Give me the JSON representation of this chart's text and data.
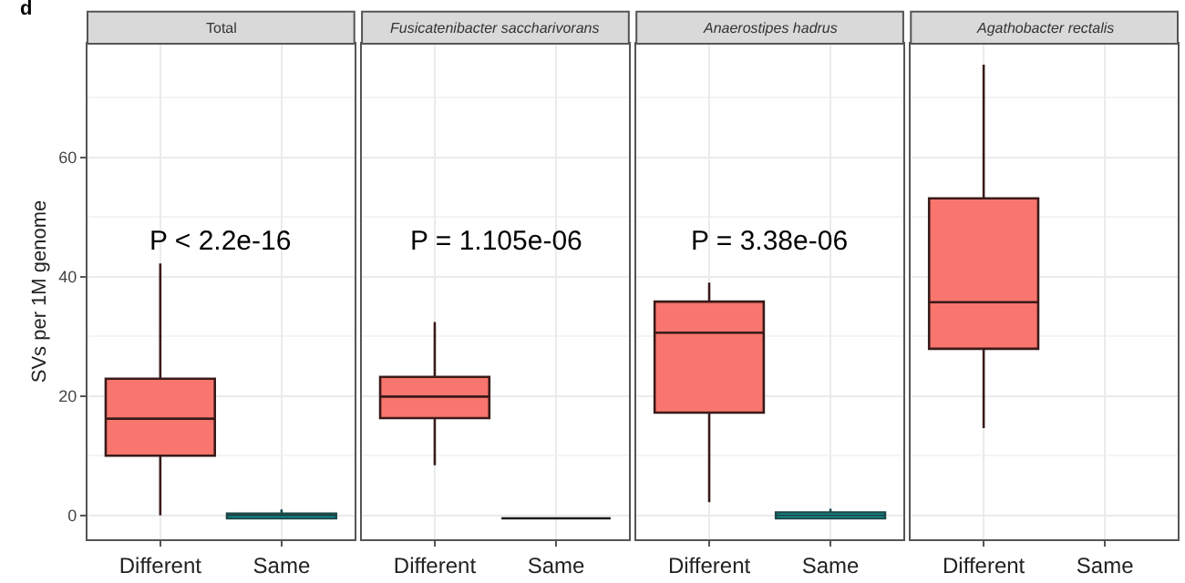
{
  "chart_data": [
    {
      "type": "box",
      "title": "Total",
      "ylabel": "SVs per 1M genome",
      "categories": [
        "Different",
        "Same"
      ],
      "colors": [
        "#f8766d",
        "#00bfc4"
      ],
      "boxes": [
        {
          "low": 0,
          "q1": 10,
          "median": 16.2,
          "q3": 22.9,
          "high": 42.2
        },
        {
          "low": -0.5,
          "q1": -0.5,
          "median": 0,
          "q3": 0.3,
          "high": 1
        }
      ],
      "ylim": [
        -4,
        79
      ],
      "yticks": [
        0,
        20,
        40,
        60
      ],
      "grid": true,
      "annotations": [
        "d",
        "P < 2.2e-16"
      ]
    },
    {
      "type": "box",
      "title": "Fusicatenibacter saccharivorans",
      "categories": [
        "Different",
        "Same"
      ],
      "colors": [
        "#f8766d",
        "#1a1a1a"
      ],
      "boxes": [
        {
          "low": 8.4,
          "q1": 16.3,
          "median": 19.9,
          "q3": 23.2,
          "high": 32.4
        },
        {
          "low": -0.5,
          "q1": -0.5,
          "median": -0.5,
          "q3": -0.5,
          "high": -0.5
        }
      ],
      "ylim": [
        -4,
        79
      ],
      "yticks": [
        0,
        20,
        40,
        60
      ],
      "grid": true,
      "tick_labels": "x",
      "annotations": [
        "P = 1.105e-06"
      ]
    },
    {
      "type": "box",
      "title": "Anaerostipes hadrus",
      "categories": [
        "Different",
        "Same"
      ],
      "colors": [
        "#f8766d",
        "#00bfc4"
      ],
      "boxes": [
        {
          "low": 2.2,
          "q1": 17.2,
          "median": 30.6,
          "q3": 35.8,
          "high": 39
        },
        {
          "low": -0.5,
          "q1": -0.5,
          "median": 0,
          "q3": 0.5,
          "high": 1.1
        }
      ],
      "ylim": [
        -4,
        79
      ],
      "yticks": [
        0,
        20,
        40,
        60
      ],
      "grid": true,
      "tick_labels": "x",
      "annotations": [
        "P = 3.38e-06"
      ]
    },
    {
      "type": "box",
      "title": "Agathobacter rectalis",
      "categories": [
        "Different",
        "Same"
      ],
      "colors": [
        "#f8766d",
        "#00bfc4"
      ],
      "boxes": [
        {
          "low": 14.6,
          "q1": 27.9,
          "median": 35.7,
          "q3": 53.1,
          "high": 75.5
        },
        null
      ],
      "ylim": [
        -4,
        79
      ],
      "yticks": [
        0,
        20,
        40,
        60
      ],
      "grid": true,
      "tick_labels": "x"
    }
  ]
}
